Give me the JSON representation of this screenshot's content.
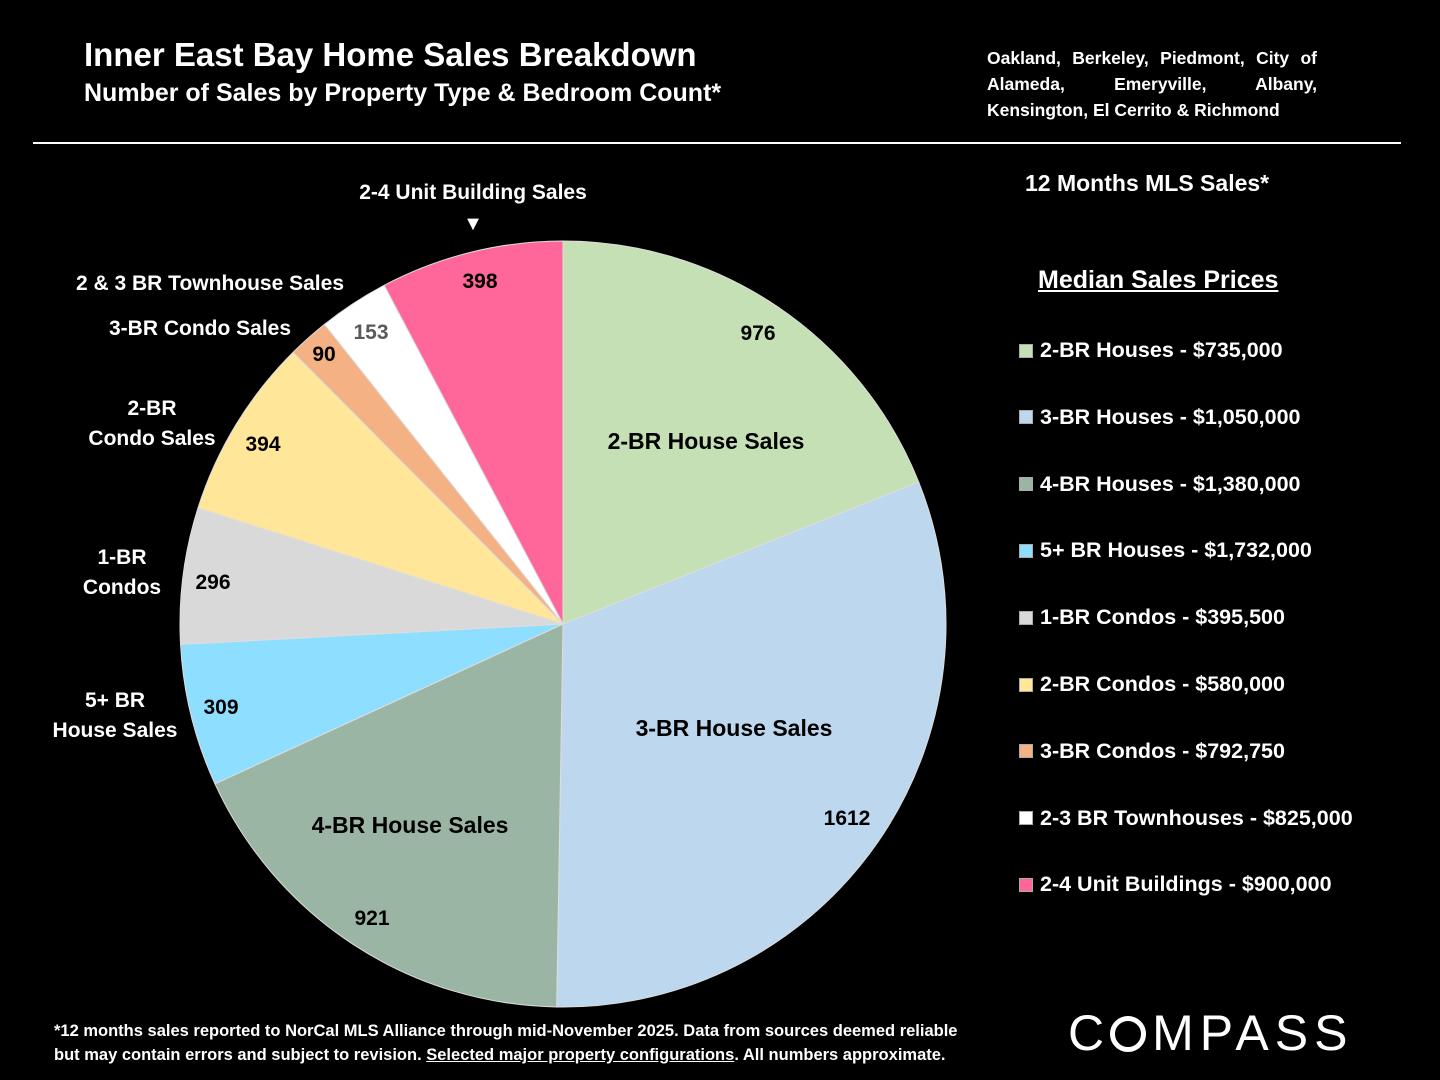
{
  "header": {
    "title": "Inner East Bay Home Sales Breakdown",
    "subtitle": "Number of Sales by Property Type & Bedroom Count*",
    "cities": "Oakland, Berkeley, Piedmont, City of Alameda, Emeryville, Albany, Kensington, El Cerrito & Richmond"
  },
  "chart_data": {
    "type": "pie",
    "title": "Inner East Bay Home Sales Breakdown",
    "subtitle": "Number of Sales by Property Type & Bedroom Count*",
    "start": "12 o'clock, clockwise",
    "slices": [
      {
        "label": "2-BR House Sales",
        "value": 976,
        "color": "#C5E0B4"
      },
      {
        "label": "3-BR House Sales",
        "value": 1612,
        "color": "#BDD7EE"
      },
      {
        "label": "4-BR House Sales",
        "value": 921,
        "color": "#9BB5A5"
      },
      {
        "label": "5+ BR\nHouse Sales",
        "value": 309,
        "color": "#8EDFFF"
      },
      {
        "label": "1-BR\nCondos",
        "value": 296,
        "color": "#D9D9D9"
      },
      {
        "label": "2-BR\nCondo Sales",
        "value": 394,
        "color": "#FFE699"
      },
      {
        "label": "3-BR Condo Sales",
        "value": 90,
        "color": "#F4B183"
      },
      {
        "label": "2 & 3 BR Townhouse Sales",
        "value": 153,
        "color": "#FFFFFF"
      },
      {
        "label": "2-4 Unit Building Sales",
        "value": 398,
        "color": "#FF6699"
      }
    ]
  },
  "arrow": "▼",
  "legend": {
    "heading": "12 Months MLS Sales*",
    "title": "Median Sales Prices",
    "items": [
      {
        "label": "2-BR Houses - $735,000",
        "color": "#C5E0B4"
      },
      {
        "label": "3-BR Houses - $1,050,000",
        "color": "#BDD7EE"
      },
      {
        "label": "4-BR Houses - $1,380,000",
        "color": "#9BB5A5"
      },
      {
        "label": "5+ BR Houses - $1,732,000",
        "color": "#8EDFFF"
      },
      {
        "label": "1-BR Condos - $395,500",
        "color": "#D9D9D9"
      },
      {
        "label": "2-BR Condos - $580,000",
        "color": "#FFE699"
      },
      {
        "label": "3-BR Condos - $792,750",
        "color": "#F4B183"
      },
      {
        "label": "2-3 BR Townhouses - $825,000",
        "color": "#FFFFFF"
      },
      {
        "label": "2-4 Unit Buildings - $900,000",
        "color": "#FF6699"
      }
    ]
  },
  "footnote": {
    "line1": "*12 months sales reported to NorCal MLS Alliance through mid-November 2025. Data from sources deemed reliable",
    "line2a": "but may contain errors and subject to revision. ",
    "link": "Selected major property configurations",
    "line2b": ". All numbers approximate."
  },
  "logo": "COMPASS"
}
